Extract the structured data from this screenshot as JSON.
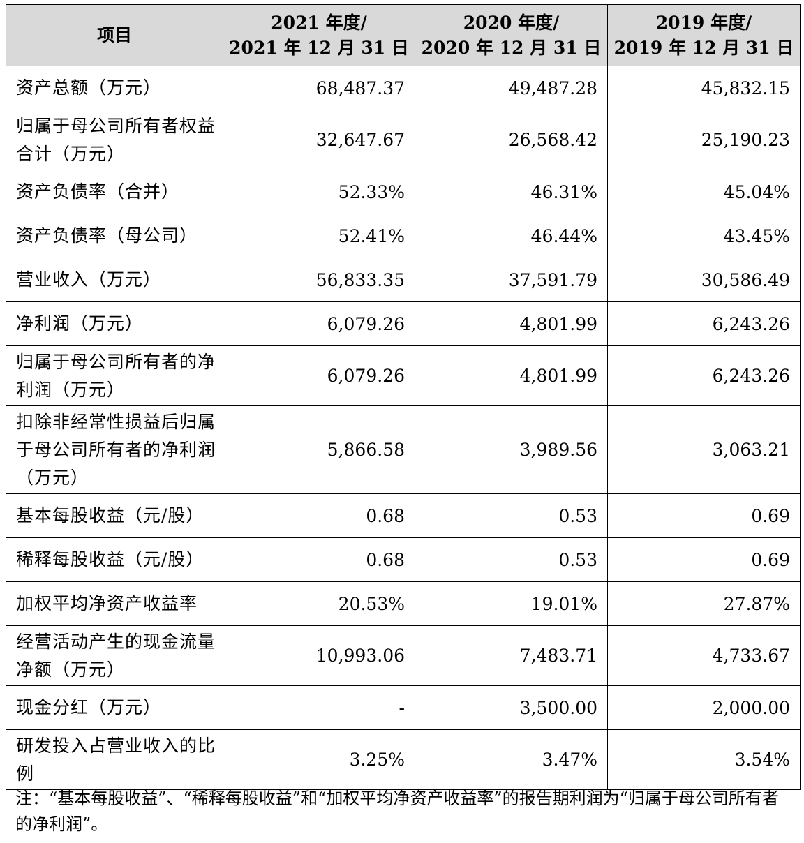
{
  "table": {
    "headers": [
      {
        "line1": "项目",
        "line2": ""
      },
      {
        "line1": "2021 年度/",
        "line2": "2021 年 12 月 31 日"
      },
      {
        "line1": "2020 年度/",
        "line2": "2020 年 12 月 31 日"
      },
      {
        "line1": "2019 年度/",
        "line2": "2019 年 12 月 31 日"
      }
    ],
    "rows": [
      {
        "label": "资产总额（万元）",
        "v2021": "68,487.37",
        "v2020": "49,487.28",
        "v2019": "45,832.15"
      },
      {
        "label": "归属于母公司所有者权益合计（万元）",
        "v2021": "32,647.67",
        "v2020": "26,568.42",
        "v2019": "25,190.23"
      },
      {
        "label": "资产负债率（合并）",
        "v2021": "52.33%",
        "v2020": "46.31%",
        "v2019": "45.04%"
      },
      {
        "label": "资产负债率（母公司）",
        "v2021": "52.41%",
        "v2020": "46.44%",
        "v2019": "43.45%"
      },
      {
        "label": "营业收入（万元）",
        "v2021": "56,833.35",
        "v2020": "37,591.79",
        "v2019": "30,586.49"
      },
      {
        "label": "净利润（万元）",
        "v2021": "6,079.26",
        "v2020": "4,801.99",
        "v2019": "6,243.26"
      },
      {
        "label": "归属于母公司所有者的净利润（万元）",
        "v2021": "6,079.26",
        "v2020": "4,801.99",
        "v2019": "6,243.26"
      },
      {
        "label": "扣除非经常性损益后归属于母公司所有者的净利润（万元）",
        "v2021": "5,866.58",
        "v2020": "3,989.56",
        "v2019": "3,063.21"
      },
      {
        "label": "基本每股收益（元/股）",
        "v2021": "0.68",
        "v2020": "0.53",
        "v2019": "0.69"
      },
      {
        "label": "稀释每股收益（元/股）",
        "v2021": "0.68",
        "v2020": "0.53",
        "v2019": "0.69"
      },
      {
        "label": "加权平均净资产收益率",
        "v2021": "20.53%",
        "v2020": "19.01%",
        "v2019": "27.87%"
      },
      {
        "label": "经营活动产生的现金流量净额（万元）",
        "v2021": "10,993.06",
        "v2020": "7,483.71",
        "v2019": "4,733.67"
      },
      {
        "label": "现金分红（万元）",
        "v2021": "-",
        "v2020": "3,500.00",
        "v2019": "2,000.00"
      },
      {
        "label": "研发投入占营业收入的比例",
        "v2021": "3.25%",
        "v2020": "3.47%",
        "v2019": "3.54%"
      }
    ]
  },
  "note": "注：“基本每股收益”、“稀释每股收益”和“加权平均净资产收益率”的报告期利润为“归属于母公司所有者的净利润”。"
}
